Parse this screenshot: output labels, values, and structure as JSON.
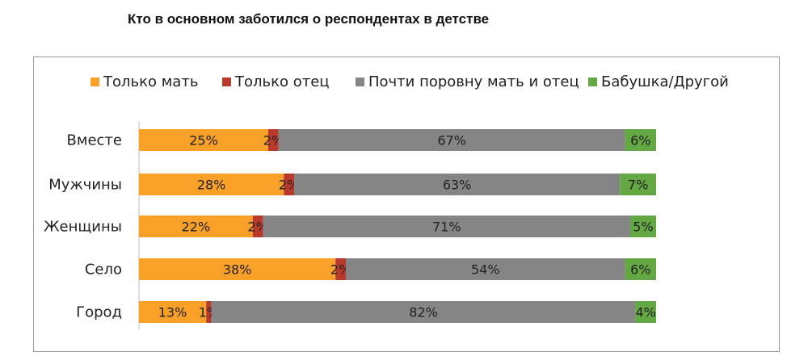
{
  "chart_data": {
    "type": "bar",
    "orientation": "horizontal",
    "stacked": "percent",
    "title": "Кто в основном заботился о респондентах в детстве",
    "categories": [
      "Вместе",
      "Мужчины",
      "Женщины",
      "Село",
      "Город"
    ],
    "series": [
      {
        "name": "Только  мать",
        "color": "#f9a028",
        "values": [
          25,
          28,
          22,
          38,
          13
        ],
        "labels": [
          "25%",
          "28%",
          "22%",
          "38%",
          "13%"
        ]
      },
      {
        "name": "Только отец",
        "color": "#b73a2c",
        "values": [
          2,
          2,
          2,
          2,
          1
        ],
        "labels": [
          "2%",
          "2%",
          "2%",
          "2%",
          "1%"
        ]
      },
      {
        "name": "Почти поровну мать и отец",
        "color": "#858585",
        "values": [
          67,
          63,
          71,
          54,
          82
        ],
        "labels": [
          "67%",
          "63%",
          "71%",
          "54%",
          "82%"
        ]
      },
      {
        "name": "Бабушка/Другой",
        "color": "#63a843",
        "values": [
          6,
          7,
          5,
          6,
          4
        ],
        "labels": [
          "6%",
          "7%",
          "5%",
          "6%",
          "4%"
        ]
      }
    ],
    "xlim": [
      0,
      100
    ],
    "legend_position": "top",
    "grid": false
  }
}
